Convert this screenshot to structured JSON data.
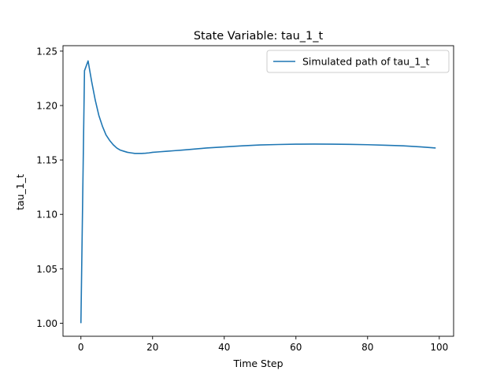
{
  "chart_data": {
    "type": "line",
    "title": "State Variable: tau_1_t",
    "xlabel": "Time Step",
    "ylabel": "tau_1_t",
    "xlim": [
      -5,
      104
    ],
    "ylim": [
      0.988,
      1.255
    ],
    "xticks": [
      0,
      20,
      40,
      60,
      80,
      100
    ],
    "yticks": [
      1.0,
      1.05,
      1.1,
      1.15,
      1.2,
      1.25
    ],
    "ytick_labels": [
      "1.00",
      "1.05",
      "1.10",
      "1.15",
      "1.20",
      "1.25"
    ],
    "grid": false,
    "legend_position": "top-right",
    "series": [
      {
        "name": "Simulated path of tau_1_t",
        "color": "#1f77b4",
        "x": [
          0,
          1,
          2,
          3,
          4,
          5,
          6,
          7,
          8,
          9,
          10,
          11,
          12,
          13,
          14,
          15,
          16,
          17,
          18,
          19,
          20,
          22,
          24,
          26,
          28,
          30,
          35,
          40,
          45,
          50,
          55,
          60,
          65,
          70,
          75,
          80,
          85,
          90,
          95,
          99
        ],
        "y": [
          1.0,
          1.232,
          1.241,
          1.222,
          1.205,
          1.191,
          1.181,
          1.173,
          1.168,
          1.164,
          1.161,
          1.159,
          1.158,
          1.157,
          1.1565,
          1.156,
          1.156,
          1.156,
          1.1562,
          1.1565,
          1.157,
          1.1575,
          1.158,
          1.1585,
          1.159,
          1.1595,
          1.161,
          1.162,
          1.163,
          1.1638,
          1.1642,
          1.1645,
          1.1646,
          1.1645,
          1.1643,
          1.164,
          1.1635,
          1.163,
          1.162,
          1.161
        ]
      }
    ]
  }
}
